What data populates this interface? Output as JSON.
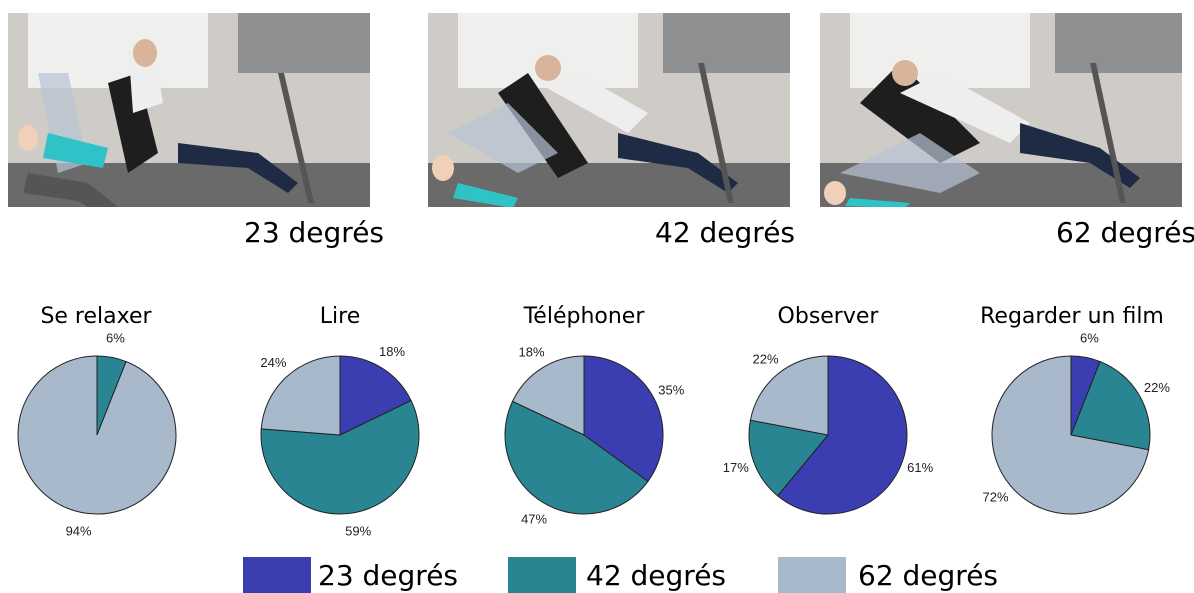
{
  "photos": [
    {
      "label": "23 degrés"
    },
    {
      "label": "42 degrés"
    },
    {
      "label": "62 degrés"
    }
  ],
  "colors": {
    "23 degrés": "#3b3eb0",
    "42 degrés": "#2a8592",
    "62 degrés": "#a8b9cc"
  },
  "chart_data": [
    {
      "type": "pie",
      "title": "Se relaxer",
      "labels": [
        "23 degrés",
        "42 degrés",
        "62 degrés"
      ],
      "values": [
        0,
        6,
        94
      ]
    },
    {
      "type": "pie",
      "title": "Lire",
      "labels": [
        "23 degrés",
        "42 degrés",
        "62 degrés"
      ],
      "values": [
        18,
        59,
        24
      ]
    },
    {
      "type": "pie",
      "title": "Téléphoner",
      "labels": [
        "23 degrés",
        "42 degrés",
        "62 degrés"
      ],
      "values": [
        35,
        47,
        18
      ]
    },
    {
      "type": "pie",
      "title": "Observer",
      "labels": [
        "23 degrés",
        "42 degrés",
        "62 degrés"
      ],
      "values": [
        61,
        17,
        22
      ]
    },
    {
      "type": "pie",
      "title": "Regarder un film",
      "labels": [
        "23 degrés",
        "42 degrés",
        "62 degrés"
      ],
      "values": [
        6,
        22,
        72
      ]
    }
  ],
  "legend": [
    {
      "label": "23 degrés"
    },
    {
      "label": "42 degrés"
    },
    {
      "label": "62 degrés"
    }
  ]
}
